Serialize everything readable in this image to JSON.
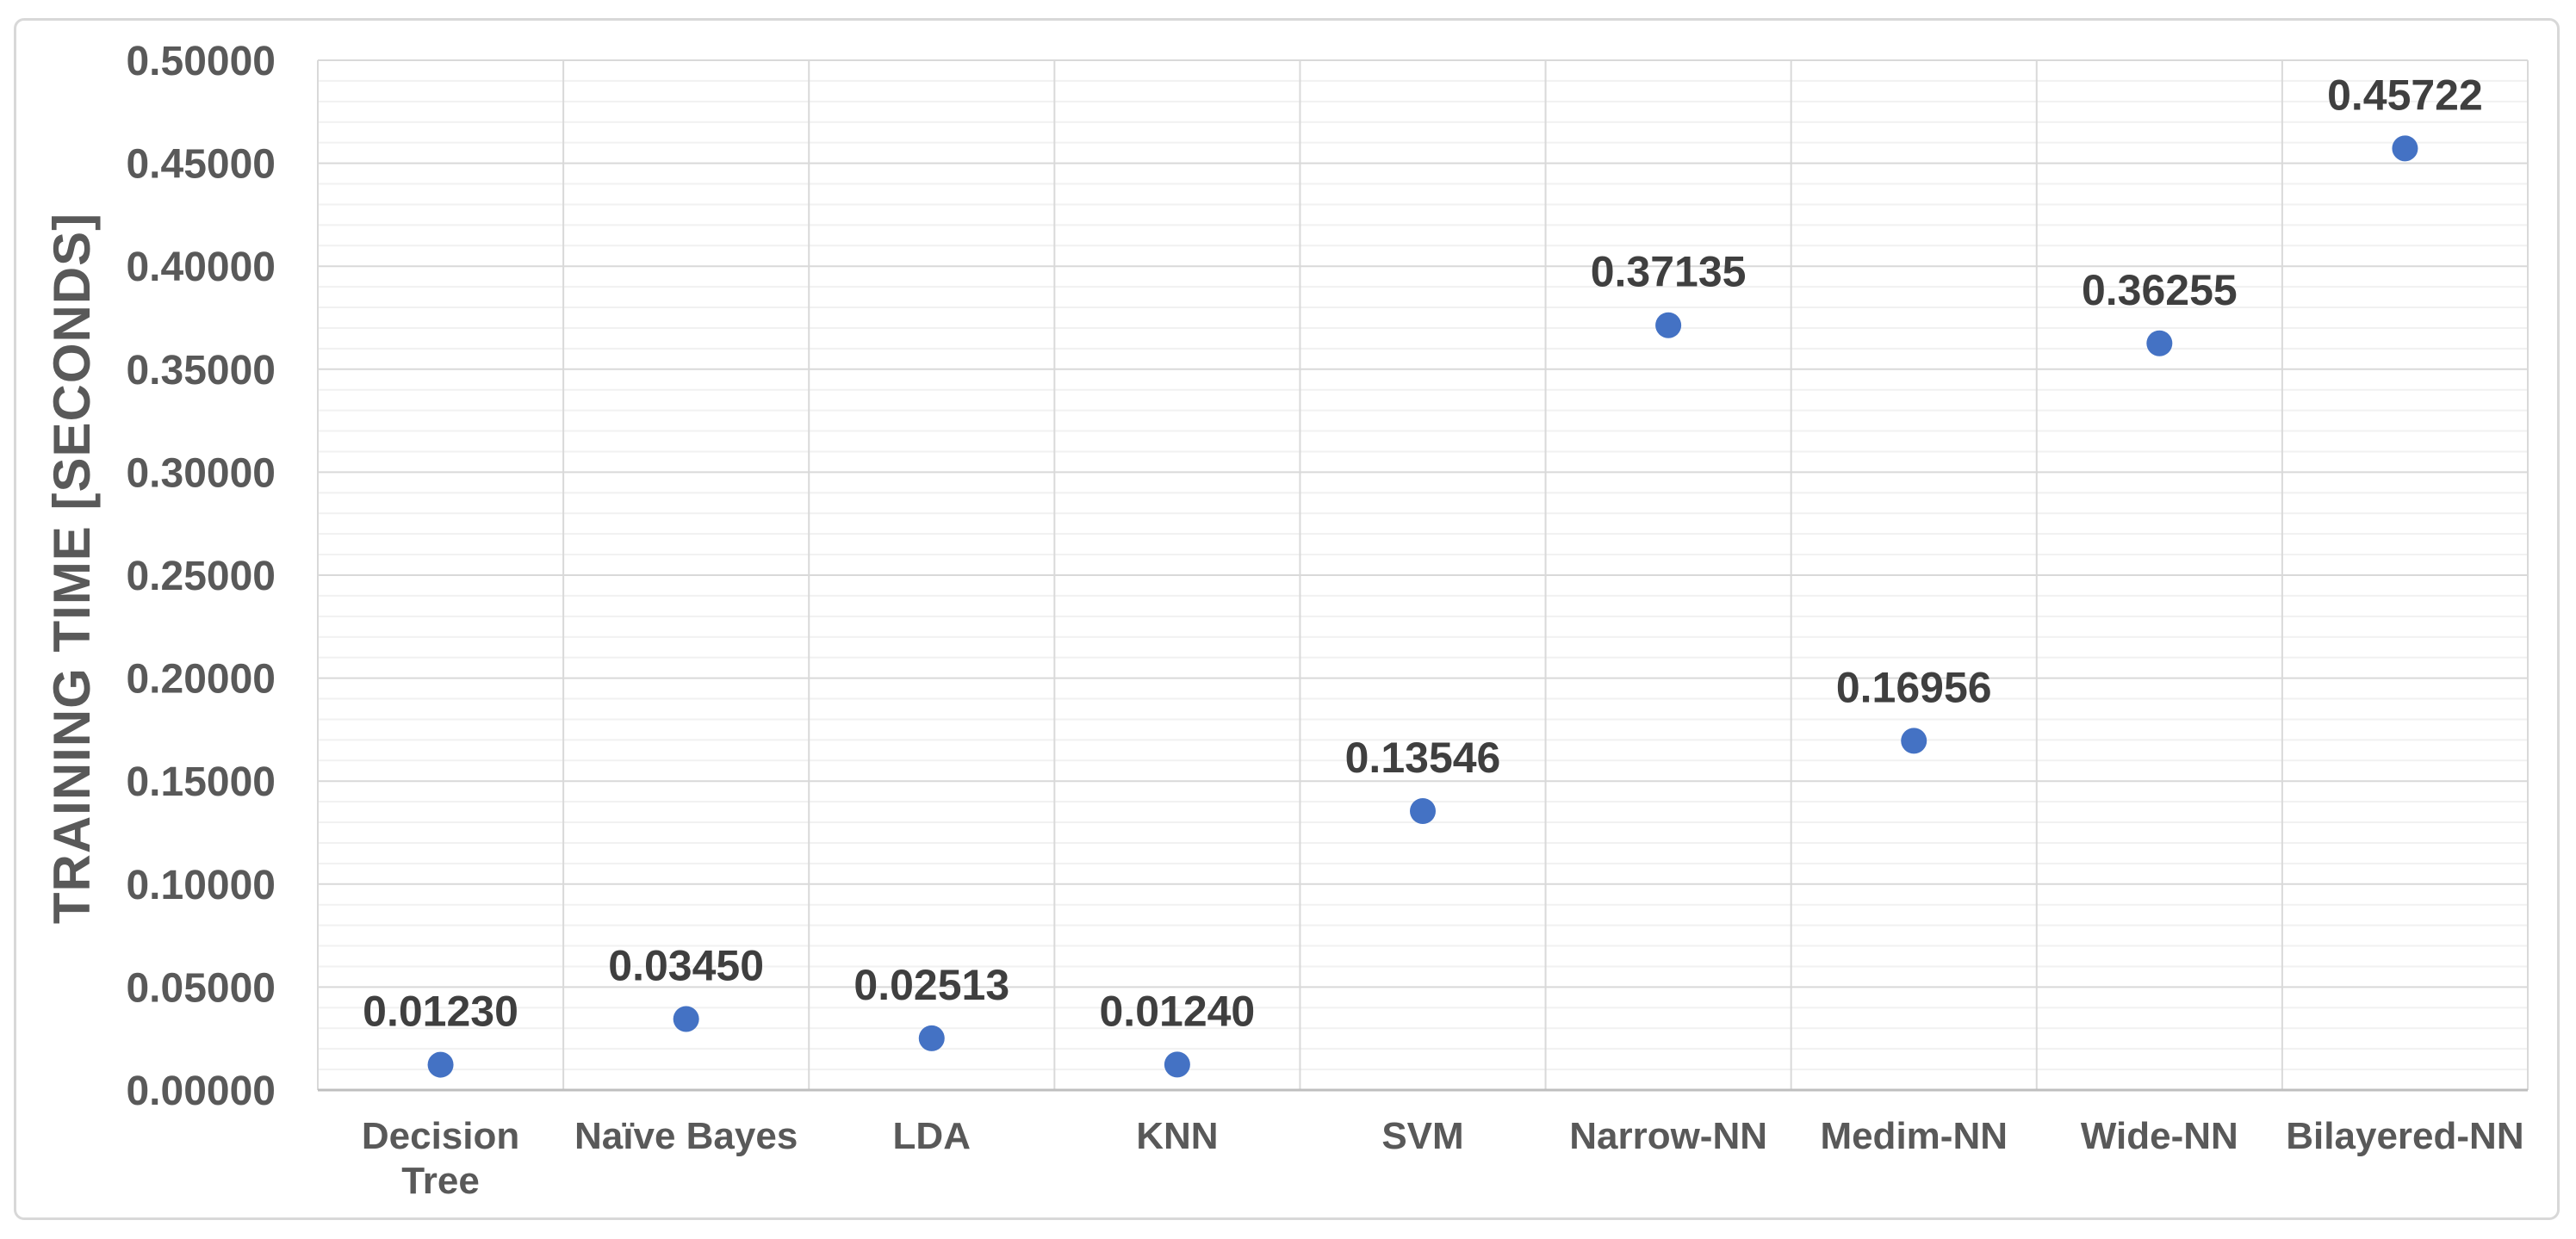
{
  "chart_data": {
    "type": "scatter",
    "title": "",
    "categories": [
      "Decision Tree",
      "Naïve Bayes",
      "LDA",
      "KNN",
      "SVM",
      "Narrow-NN",
      "Medim-NN",
      "Wide-NN",
      "Bilayered-NN"
    ],
    "values": [
      0.0123,
      0.0345,
      0.02513,
      0.0124,
      0.13546,
      0.37135,
      0.16956,
      0.36255,
      0.45722
    ],
    "value_labels": [
      "0.01230",
      "0.03450",
      "0.02513",
      "0.01240",
      "0.13546",
      "0.37135",
      "0.16956",
      "0.36255",
      "0.45722"
    ],
    "xlabel": "",
    "ylabel": "TRAINING TIME [SECONDS]",
    "ylim": [
      0,
      0.5
    ],
    "y_major_step": 0.05,
    "y_minor_step": 0.01,
    "y_tick_labels": [
      "0.00000",
      "0.05000",
      "0.10000",
      "0.15000",
      "0.20000",
      "0.25000",
      "0.30000",
      "0.35000",
      "0.40000",
      "0.45000",
      "0.50000"
    ],
    "grid": "horizontal major + minor, vertical at category boundaries",
    "legend": "none",
    "colors": {
      "marker": "#4472C4",
      "axis_text": "#595959",
      "data_label": "#3F3F3F",
      "major_grid": "#D9D9D9",
      "minor_grid": "#F1F1F1",
      "vertical_grid": "#D9D9D9",
      "axis_line": "#BFBFBF",
      "frame_border": "#D8D8D8",
      "background": "#FFFFFF"
    }
  }
}
